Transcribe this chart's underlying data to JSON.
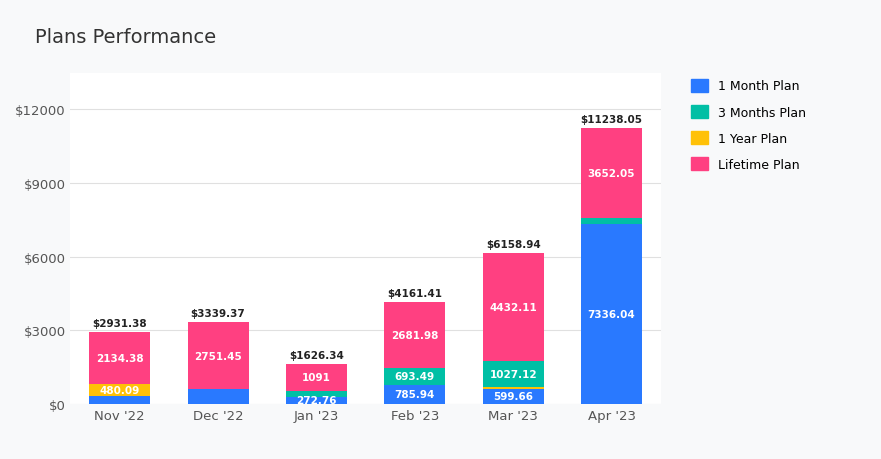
{
  "title": "Plans Performance",
  "categories": [
    "Nov '22",
    "Dec '22",
    "Jan '23",
    "Feb '23",
    "Mar '23",
    "Apr '23"
  ],
  "totals": [
    "$2931.38",
    "$3339.37",
    "$1626.34",
    "$4161.41",
    "$6158.94",
    "$11238.05"
  ],
  "plans": {
    "1 Month Plan": {
      "values": [
        316.91,
        587.92,
        272.76,
        785.94,
        599.66,
        7336.04
      ],
      "color": "#2979FF"
    },
    "1 Year Plan": {
      "values": [
        480.09,
        0,
        0,
        0,
        100.17,
        0
      ],
      "color": "#FFC107"
    },
    "3 Months Plan": {
      "values": [
        0,
        0,
        262.58,
        693.49,
        1027.12,
        249.96
      ],
      "color": "#00BFA5"
    },
    "Lifetime Plan": {
      "values": [
        2134.38,
        2751.45,
        1091,
        2681.98,
        4432.11,
        3652.05
      ],
      "color": "#FF4081"
    }
  },
  "bar_labels": {
    "1 Month Plan": [
      null,
      null,
      "272.76",
      "785.94",
      "599.66",
      "7336.04"
    ],
    "1 Year Plan": [
      "480.09",
      null,
      null,
      null,
      null,
      null
    ],
    "3 Months Plan": [
      null,
      null,
      null,
      "693.49",
      "1027.12",
      null
    ],
    "Lifetime Plan": [
      "2134.38",
      "2751.45",
      "1091",
      "2681.98",
      "4432.11",
      "3652.05"
    ]
  },
  "ylim": [
    0,
    13500
  ],
  "yticks": [
    0,
    3000,
    6000,
    9000,
    12000
  ],
  "ytick_labels": [
    "$0",
    "$3000",
    "$6000",
    "$9000",
    "$12000"
  ],
  "background_color": "#F8F9FA",
  "plot_bg_color": "#FFFFFF",
  "grid_color": "#E0E0E0",
  "title_fontsize": 14,
  "legend_order": [
    "1 Month Plan",
    "3 Months Plan",
    "1 Year Plan",
    "Lifetime Plan"
  ]
}
